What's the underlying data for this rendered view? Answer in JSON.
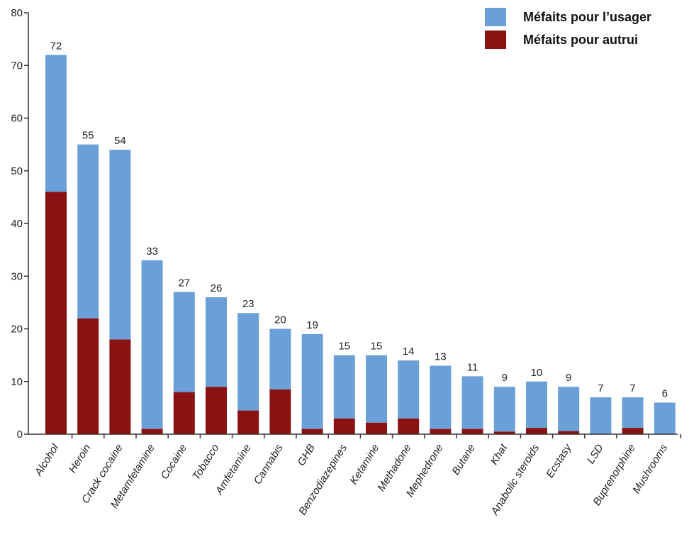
{
  "chart_data": {
    "type": "bar",
    "stacked": true,
    "categories": [
      "Alcohol",
      "Heroin",
      "Crack cocaine",
      "Metamfetamine",
      "Cocaine",
      "Tobacco",
      "Amfetamine",
      "Cannabis",
      "GHB",
      "Benzodiazepines",
      "Ketamine",
      "Methadone",
      "Mephedrone",
      "Butane",
      "Khat",
      "Anabolic steroids",
      "Ecstasy",
      "LSD",
      "Buprenorphine",
      "Mushrooms"
    ],
    "totals": [
      72,
      55,
      54,
      33,
      27,
      26,
      23,
      20,
      19,
      15,
      15,
      14,
      13,
      11,
      9,
      10,
      9,
      7,
      7,
      6
    ],
    "total_labels": [
      "72",
      "55",
      "54",
      "33",
      "27",
      "26",
      "23",
      "20",
      "19",
      "15",
      "15",
      "14",
      "13",
      "11",
      "9",
      "10",
      "9",
      "7",
      "7",
      "6"
    ],
    "series": [
      {
        "name": "Méfaits pour autrui",
        "color": "#8b1212",
        "values": [
          46,
          22,
          18,
          1,
          8,
          9,
          4.5,
          8.5,
          1,
          3,
          2.2,
          3,
          1,
          1,
          0.5,
          1.2,
          0.6,
          0,
          1.2,
          0
        ]
      },
      {
        "name": "Méfaits pour l’usager",
        "color": "#6a9fd8",
        "values": [
          26,
          33,
          36,
          32,
          19,
          17,
          18.5,
          11.5,
          18,
          12,
          12.8,
          11,
          12,
          10,
          8.5,
          8.8,
          8.4,
          7,
          5.8,
          6
        ]
      }
    ],
    "yticks": [
      "0",
      "10",
      "20",
      "30",
      "40",
      "50",
      "60",
      "70",
      "80"
    ],
    "ylim": [
      0,
      80
    ],
    "grid": false,
    "legend_position": "top-right"
  },
  "legend": {
    "items": [
      {
        "label": "Méfaits pour l’usager",
        "color": "#6a9fd8"
      },
      {
        "label": "Méfaits pour autrui",
        "color": "#8b1212"
      }
    ]
  }
}
